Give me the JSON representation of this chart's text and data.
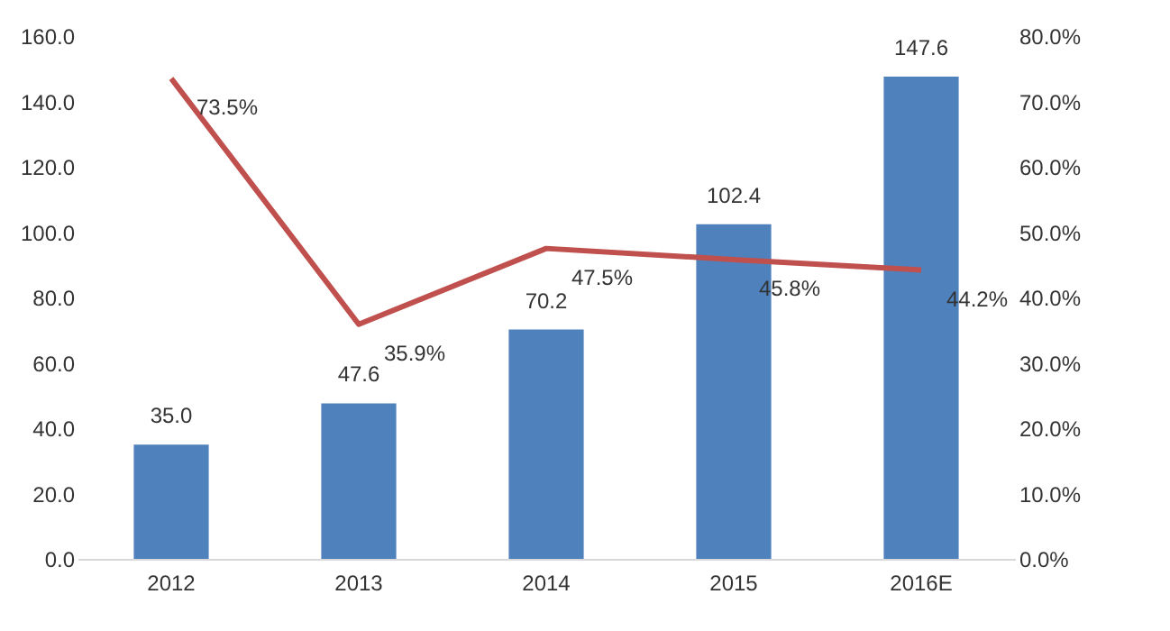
{
  "chart_data": {
    "type": "bar",
    "categories": [
      "2012",
      "2013",
      "2014",
      "2015",
      "2016E"
    ],
    "series": [
      {
        "color": "#4f81bd",
        "values": [
          35.0,
          47.6,
          70.2,
          102.4,
          147.6
        ],
        "value_labels": [
          "35.0",
          "47.6",
          "70.2",
          "102.4",
          "147.6"
        ]
      },
      {
        "type": "line",
        "axis": "y2",
        "color": "#c0504d",
        "values": [
          73.5,
          35.9,
          47.5,
          45.8,
          44.2
        ],
        "value_labels": [
          "73.5%",
          "35.9%",
          "47.5%",
          "45.8%",
          "44.2%"
        ]
      }
    ],
    "ylim": [
      0,
      160
    ],
    "yticks": [
      {
        "value": 0,
        "label": "0.0"
      },
      {
        "value": 20,
        "label": "20.0"
      },
      {
        "value": 40,
        "label": "40.0"
      },
      {
        "value": 60,
        "label": "60.0"
      },
      {
        "value": 80,
        "label": "80.0"
      },
      {
        "value": 100,
        "label": "100.0"
      },
      {
        "value": 120,
        "label": "120.0"
      },
      {
        "value": 140,
        "label": "140.0"
      },
      {
        "value": 160,
        "label": "160.0"
      }
    ],
    "y2lim": [
      0,
      80
    ],
    "y2ticks": [
      {
        "value": 0,
        "label": "0.0%"
      },
      {
        "value": 10,
        "label": "10.0%"
      },
      {
        "value": 20,
        "label": "20.0%"
      },
      {
        "value": 30,
        "label": "30.0%"
      },
      {
        "value": 40,
        "label": "40.0%"
      },
      {
        "value": 50,
        "label": "50.0%"
      },
      {
        "value": 60,
        "label": "60.0%"
      },
      {
        "value": 70,
        "label": "70.0%"
      },
      {
        "value": 80,
        "label": "80.0%"
      }
    ],
    "marker": "none",
    "line_style": "solid"
  }
}
